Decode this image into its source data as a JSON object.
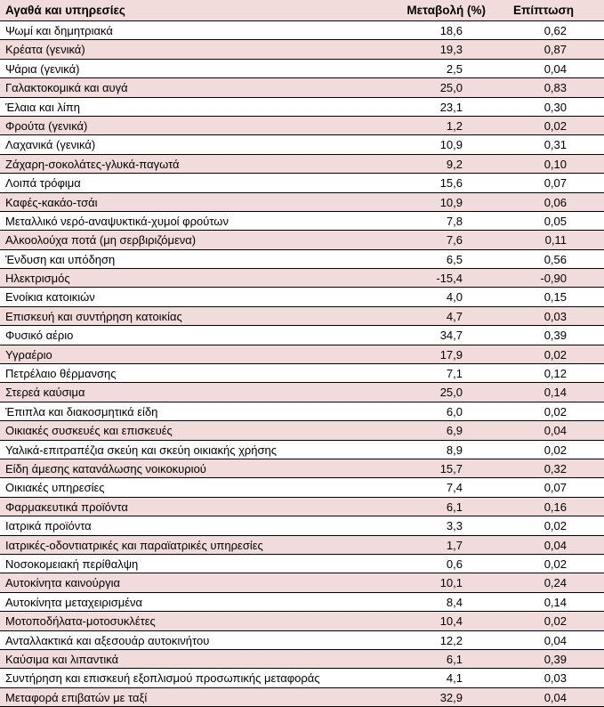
{
  "table": {
    "headers": {
      "goods": "Αγαθά και υπηρεσίες",
      "change": "Μεταβολή (%)",
      "impact": "Επίπτωση"
    },
    "rows": [
      {
        "name": "Ψωμί και δημητριακά",
        "change": "18,6",
        "impact": "0,62"
      },
      {
        "name": "Κρέατα (γενικά)",
        "change": "19,3",
        "impact": "0,87"
      },
      {
        "name": "Ψάρια (γενικά)",
        "change": "2,5",
        "impact": "0,04"
      },
      {
        "name": "Γαλακτοκομικά και αυγά",
        "change": "25,0",
        "impact": "0,83"
      },
      {
        "name": "Έλαια και λίπη",
        "change": "23,1",
        "impact": "0,30"
      },
      {
        "name": "Φρούτα (γενικά)",
        "change": "1,2",
        "impact": "0,02"
      },
      {
        "name": "Λαχανικά (γενικά)",
        "change": "10,9",
        "impact": "0,31"
      },
      {
        "name": "Ζάχαρη-σοκολάτες-γλυκά-παγωτά",
        "change": "9,2",
        "impact": "0,10"
      },
      {
        "name": "Λοιπά τρόφιμα",
        "change": "15,6",
        "impact": "0,07"
      },
      {
        "name": "Καφές-κακάο-τσάι",
        "change": "10,9",
        "impact": "0,06"
      },
      {
        "name": "Μεταλλικό νερό-αναψυκτικά-χυμοί φρούτων",
        "change": "7,8",
        "impact": "0,05"
      },
      {
        "name": "Αλκοολούχα ποτά (μη σερβιριζόμενα)",
        "change": "7,6",
        "impact": "0,11"
      },
      {
        "name": "Ένδυση και υπόδηση",
        "change": "6,5",
        "impact": "0,56"
      },
      {
        "name": "Ηλεκτρισμός",
        "change": "-15,4",
        "impact": "-0,90"
      },
      {
        "name": "Ενοίκια κατοικιών",
        "change": "4,0",
        "impact": "0,15"
      },
      {
        "name": "Επισκευή και συντήρηση κατοικίας",
        "change": "4,7",
        "impact": "0,03"
      },
      {
        "name": "Φυσικό αέριο",
        "change": "34,7",
        "impact": "0,39"
      },
      {
        "name": "Υγραέριο",
        "change": "17,9",
        "impact": "0,02"
      },
      {
        "name": "Πετρέλαιο θέρμανσης",
        "change": "7,1",
        "impact": "0,12"
      },
      {
        "name": "Στερεά καύσιμα",
        "change": "25,0",
        "impact": "0,14"
      },
      {
        "name": "Έπιπλα και διακοσμητικά είδη",
        "change": "6,0",
        "impact": "0,02"
      },
      {
        "name": "Οικιακές συσκευές και επισκευές",
        "change": "6,9",
        "impact": "0,04"
      },
      {
        "name": "Υαλικά-επιτραπέζια σκεύη και σκεύη οικιακής χρήσης",
        "change": "8,9",
        "impact": "0,02"
      },
      {
        "name": "Είδη άμεσης κατανάλωσης νοικοκυριού",
        "change": "15,7",
        "impact": "0,32"
      },
      {
        "name": "Οικιακές υπηρεσίες",
        "change": "7,4",
        "impact": "0,07"
      },
      {
        "name": "Φαρμακευτικά προϊόντα",
        "change": "6,1",
        "impact": "0,16"
      },
      {
        "name": "Ιατρικά προϊόντα",
        "change": "3,3",
        "impact": "0,02"
      },
      {
        "name": "Ιατρικές-οδοντιατρικές και παραϊατρικές υπηρεσίες",
        "change": "1,7",
        "impact": "0,04"
      },
      {
        "name": "Νοσοκομειακή περίθαλψη",
        "change": "0,6",
        "impact": "0,02"
      },
      {
        "name": "Αυτοκίνητα καινούργια",
        "change": "10,1",
        "impact": "0,24"
      },
      {
        "name": "Αυτοκίνητα μεταχειρισμένα",
        "change": "8,4",
        "impact": "0,14"
      },
      {
        "name": "Μοτοποδήλατα-μοτοσυκλέτες",
        "change": "10,4",
        "impact": "0,02"
      },
      {
        "name": "Ανταλλακτικά και αξεσουάρ αυτοκινήτου",
        "change": "12,2",
        "impact": "0,04"
      },
      {
        "name": "Καύσιμα και λιπαντικά",
        "change": "6,1",
        "impact": "0,39"
      },
      {
        "name": "Συντήρηση και επισκευή εξοπλισμού προσωπικής μεταφοράς",
        "change": "4,1",
        "impact": "0,03"
      },
      {
        "name": "Μεταφορά επιβατών με ταξί",
        "change": "32,9",
        "impact": "0,04"
      }
    ]
  },
  "colors": {
    "header_bg": "#f2dcdb",
    "alt_row_bg": "#f2dcdb",
    "plain_row_bg": "#ffffff",
    "border": "#000000"
  }
}
